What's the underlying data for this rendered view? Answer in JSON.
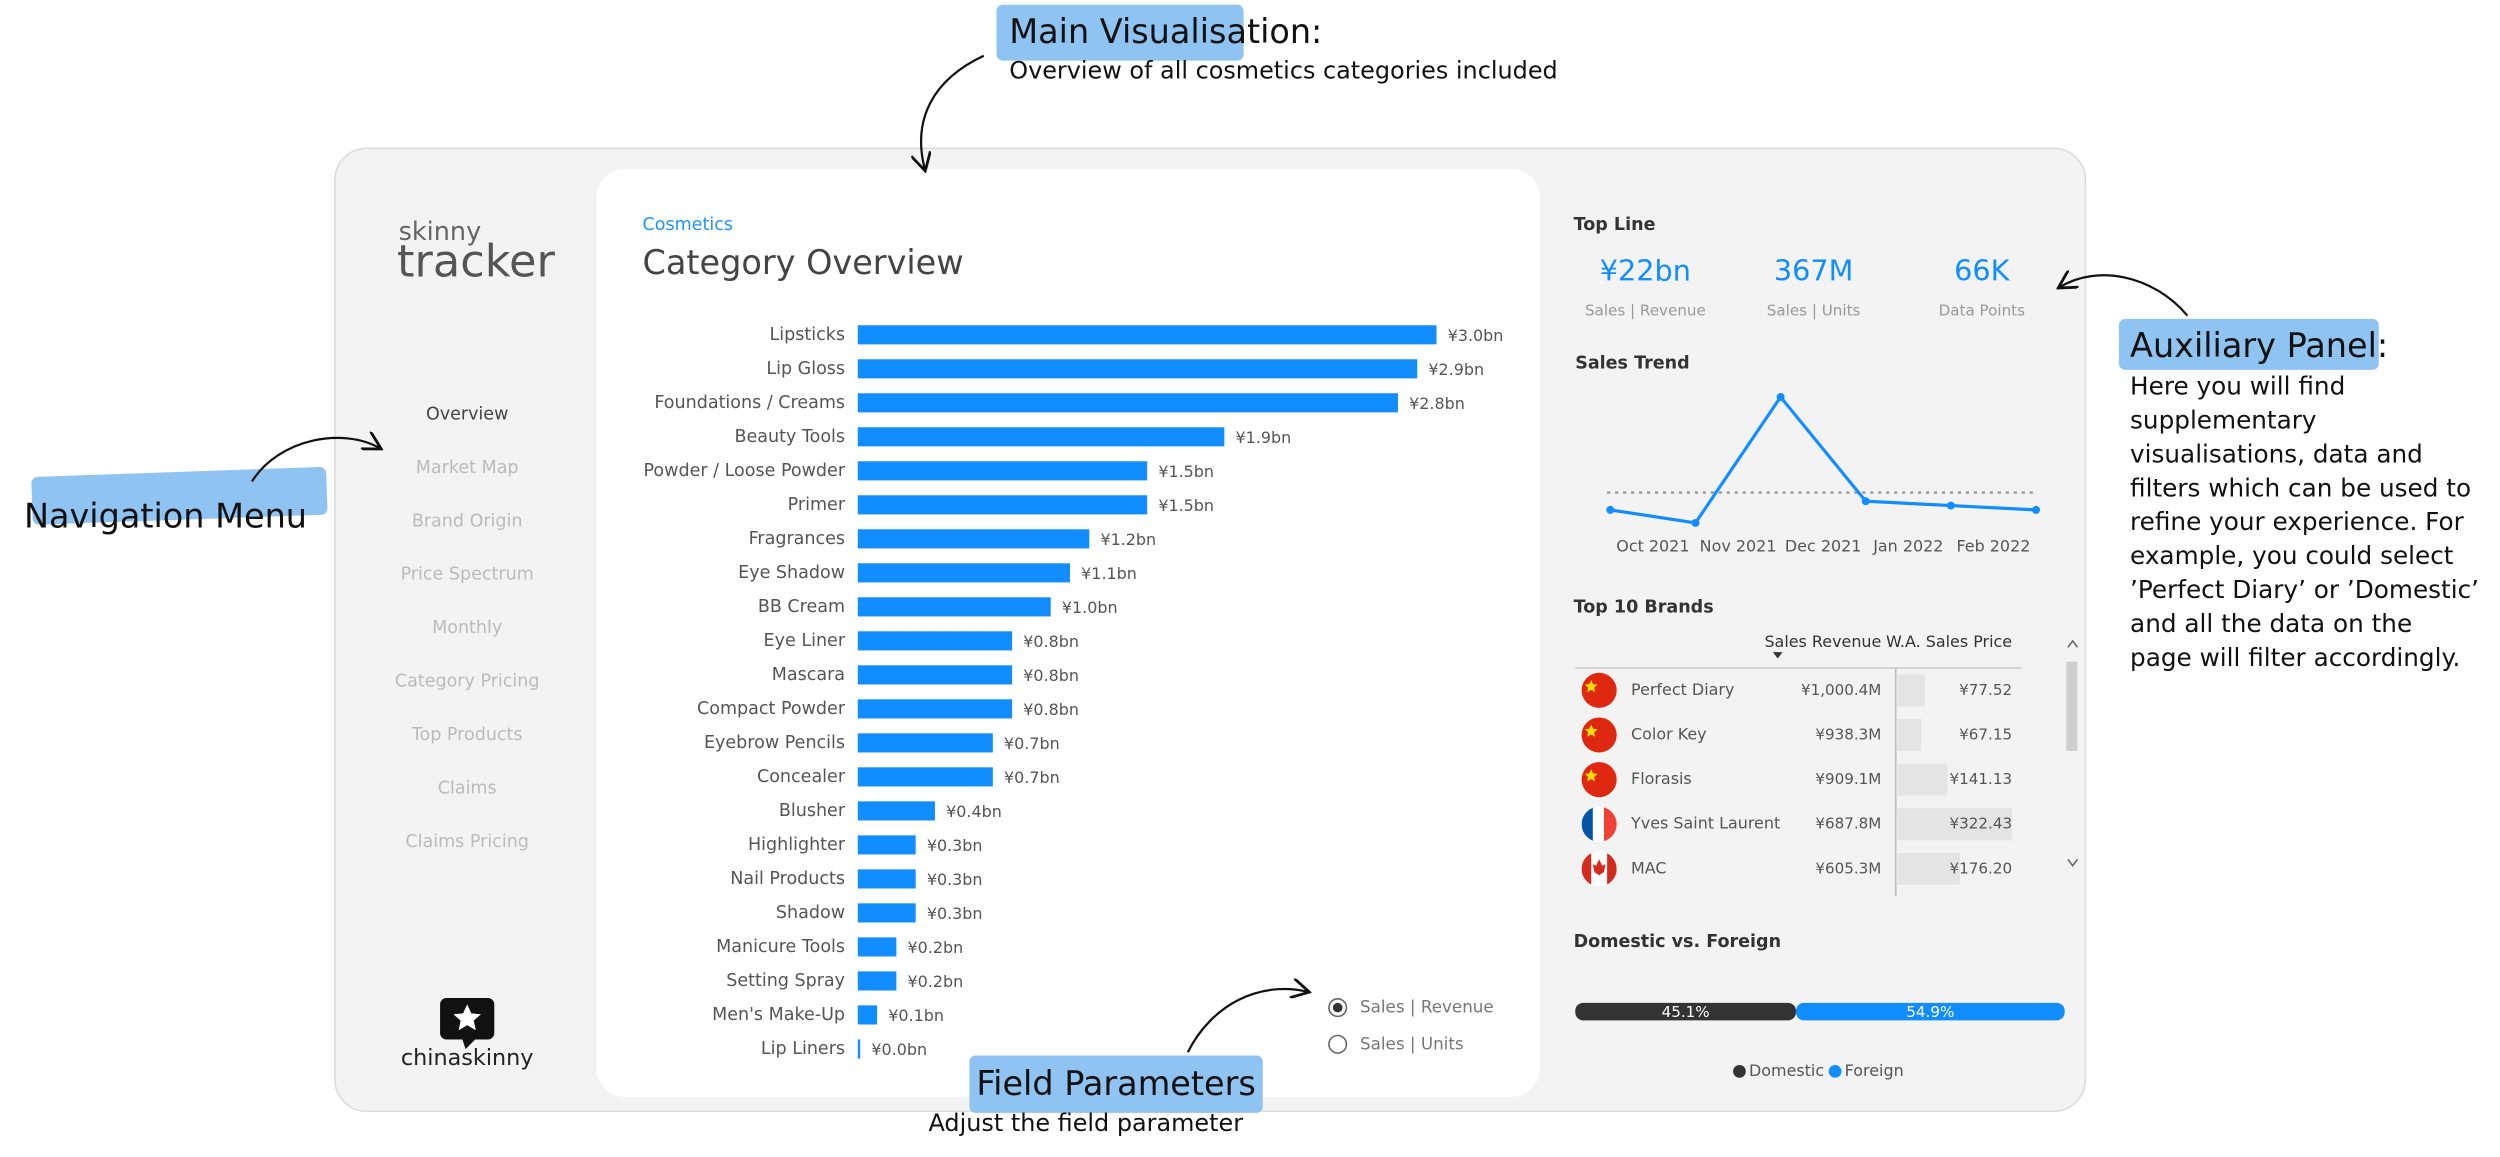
{
  "annotations": {
    "main": {
      "title": "Main Visualisation:",
      "text": "Overview of all cosmetics categories included"
    },
    "navigation": {
      "title": "Navigation Menu"
    },
    "auxiliary": {
      "title": "Auxiliary Panel:",
      "lines": [
        "Here you will find",
        "supplementary",
        "visualisations, data and",
        "filters which can be used to",
        "refine your experience. For",
        "example, you could select",
        "’Perfect Diary’ or ’Domestic’",
        "and all the data on the",
        "page will filter accordingly."
      ]
    },
    "field_parameters": {
      "title": "Field Parameters",
      "text": "Adjust the field parameter"
    }
  },
  "logo": {
    "small": "skinny",
    "large": "tracker",
    "footer": "chinaskinny"
  },
  "nav": {
    "items": [
      "Overview",
      "Market Map",
      "Brand Origin",
      "Price Spectrum",
      "Monthly",
      "Category Pricing",
      "Top Products",
      "Claims",
      "Claims Pricing"
    ],
    "active": 0
  },
  "main": {
    "breadcrumb": "Cosmetics",
    "title": "Category Overview"
  },
  "radio": {
    "options": [
      "Sales | Revenue",
      "Sales | Units"
    ],
    "selected": 0
  },
  "top_line": {
    "title": "Top Line",
    "kpis": [
      {
        "value": "¥22bn",
        "label": "Sales | Revenue"
      },
      {
        "value": "367M",
        "label": "Sales | Units"
      },
      {
        "value": "66K",
        "label": "Data Points"
      }
    ]
  },
  "brands": {
    "title": "Top 10 Brands",
    "columns": [
      "Sales Revenue",
      "W.A. Sales Price"
    ],
    "rows": [
      {
        "name": "Perfect Diary",
        "revenue": "¥1,000.4M",
        "price": 77.52,
        "price_label": "¥77.52"
      },
      {
        "name": "Color Key",
        "revenue": "¥938.3M",
        "price": 67.15,
        "price_label": "¥67.15"
      },
      {
        "name": "Florasis",
        "revenue": "¥909.1M",
        "price": 141.13,
        "price_label": "¥141.13"
      },
      {
        "name": "Yves Saint Laurent",
        "revenue": "¥687.8M",
        "price": 322.43,
        "price_label": "¥322.43"
      },
      {
        "name": "MAC",
        "revenue": "¥605.3M",
        "price": 176.2,
        "price_label": "¥176.20"
      }
    ]
  },
  "chart_data": [
    {
      "type": "hbar",
      "color": "#118dff",
      "categories": [
        "Lipsticks",
        "Lip Gloss",
        "Foundations / Creams",
        "Beauty Tools",
        "Powder / Loose Powder",
        "Primer",
        "Fragrances",
        "Eye Shadow",
        "BB Cream",
        "Eye Liner",
        "Mascara",
        "Compact Powder",
        "Eyebrow Pencils",
        "Concealer",
        "Blusher",
        "Highlighter",
        "Nail Products",
        "Shadow",
        "Manicure Tools",
        "Setting Spray",
        "Men's Make-Up",
        "Lip Liners"
      ],
      "values": [
        3.0,
        2.9,
        2.8,
        1.9,
        1.5,
        1.5,
        1.2,
        1.1,
        1.0,
        0.8,
        0.8,
        0.8,
        0.7,
        0.7,
        0.4,
        0.3,
        0.3,
        0.3,
        0.2,
        0.2,
        0.1,
        0.0
      ],
      "value_labels": [
        "¥3.0bn",
        "¥2.9bn",
        "¥2.8bn",
        "¥1.9bn",
        "¥1.5bn",
        "¥1.5bn",
        "¥1.2bn",
        "¥1.1bn",
        "¥1.0bn",
        "¥0.8bn",
        "¥0.8bn",
        "¥0.8bn",
        "¥0.7bn",
        "¥0.7bn",
        "¥0.4bn",
        "¥0.3bn",
        "¥0.3bn",
        "¥0.3bn",
        "¥0.2bn",
        "¥0.2bn",
        "¥0.1bn",
        "¥0.0bn"
      ]
    },
    {
      "type": "line",
      "title": "Sales Trend",
      "color": "#118dff",
      "x": [
        "Oct 2021",
        "Nov 2021",
        "Dec 2021",
        "Jan 2022",
        "Feb 2022",
        null
      ],
      "values": [
        2.0,
        1.7,
        4.6,
        2.2,
        2.1,
        2.0
      ],
      "reference": 2.4
    },
    {
      "type": "stacked_hbar",
      "title": "Domestic vs. Foreign",
      "series": [
        {
          "name": "Domestic",
          "color": "#333333",
          "values": [
            45.1
          ],
          "value_labels": [
            "45.1%"
          ]
        },
        {
          "name": "Foreign",
          "color": "#118dff",
          "values": [
            54.9
          ],
          "value_labels": [
            "54.9%"
          ]
        }
      ]
    }
  ]
}
